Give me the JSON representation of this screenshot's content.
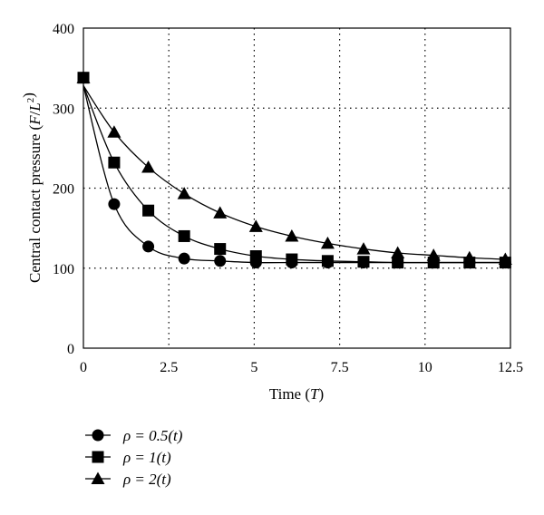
{
  "chart_data": {
    "type": "line",
    "xlabel": "Time (T)",
    "ylabel": "Central contact pressure (F/L²)",
    "xlim": [
      0,
      12.5
    ],
    "ylim": [
      0,
      400
    ],
    "x_ticks": [
      "0",
      "2.5",
      "5",
      "7.5",
      "10",
      "12.5"
    ],
    "y_ticks": [
      "0",
      "100",
      "200",
      "300",
      "400"
    ],
    "grid": true,
    "legend_position": "bottom-left",
    "x": [
      0,
      0.9,
      1.9,
      2.95,
      4.0,
      5.05,
      6.1,
      7.15,
      8.2,
      9.2,
      10.25,
      11.3,
      12.35
    ],
    "series": [
      {
        "name": "ρ = 0.5(t)",
        "marker": "circle",
        "values": [
          338,
          180,
          127,
          112,
          109,
          107,
          107,
          107,
          107,
          107,
          107,
          107,
          107
        ]
      },
      {
        "name": "ρ = 1(t)",
        "marker": "square",
        "values": [
          338,
          232,
          172,
          140,
          124,
          115,
          111,
          109,
          108,
          107,
          107,
          107,
          107
        ]
      },
      {
        "name": "ρ = 2(t)",
        "marker": "triangle",
        "values": [
          338,
          270,
          226,
          193,
          169,
          152,
          140,
          131,
          124,
          119,
          116,
          113,
          111
        ]
      }
    ]
  }
}
